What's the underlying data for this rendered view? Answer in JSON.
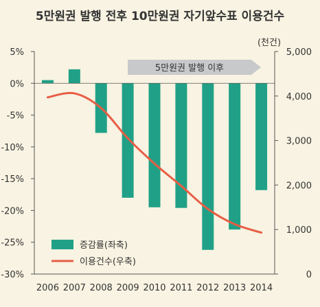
{
  "chart_data": {
    "type": "bar",
    "title": "5만원권 발행 전후 10만원권 자기앞수표 이용건수",
    "categories": [
      "2006",
      "2007",
      "2008",
      "2009",
      "2010",
      "2011",
      "2012",
      "2013",
      "2014"
    ],
    "series": [
      {
        "name": "증감률(좌축)",
        "type": "bar",
        "axis": "left",
        "values": [
          0.5,
          2.2,
          -7.8,
          -18.0,
          -19.5,
          -19.6,
          -26.2,
          -23.0,
          -16.8
        ]
      },
      {
        "name": "이용건수(우축)",
        "type": "line",
        "axis": "right",
        "values": [
          3970,
          4060,
          3730,
          3050,
          2480,
          1980,
          1460,
          1120,
          930
        ]
      }
    ],
    "y_left": {
      "min": -30,
      "max": 5,
      "ticks": [
        "5%",
        "0%",
        "-5%",
        "-10%",
        "-15%",
        "-20%",
        "-25%",
        "-30%"
      ]
    },
    "y_right": {
      "min": 0,
      "max": 5000,
      "unit": "(천건)",
      "ticks": [
        "5,000",
        "4,000",
        "3,000",
        "2,000",
        "1,000",
        "0"
      ]
    },
    "annotation": "5만원권 발행 이후",
    "legend_position": "bottom-left",
    "colors": {
      "bar": "#20a187",
      "line": "#e85d45",
      "arrow": "#c7c9cb",
      "axis": "#555555"
    }
  }
}
